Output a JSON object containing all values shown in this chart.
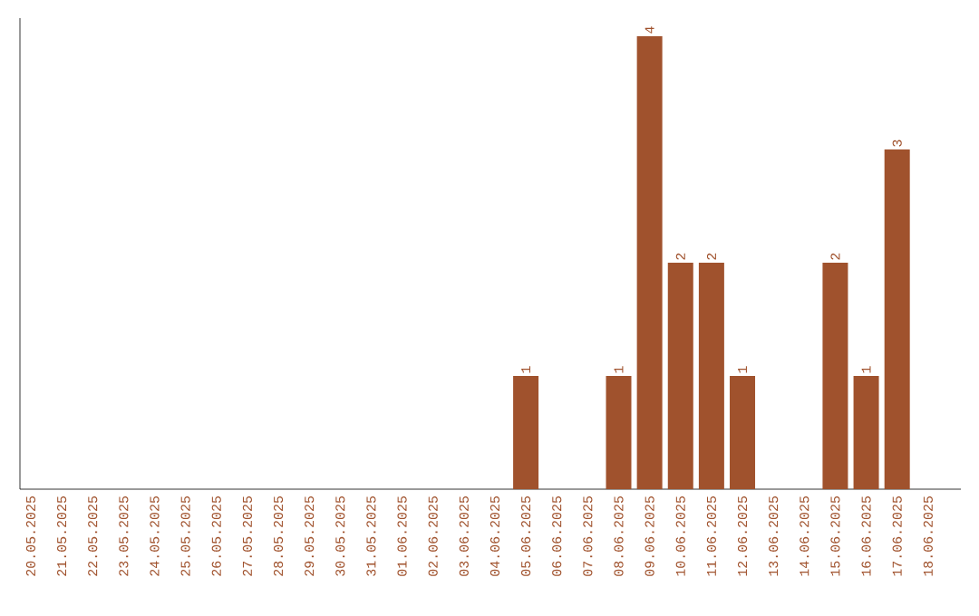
{
  "chart_data": {
    "type": "bar",
    "categories": [
      "20.05.2025",
      "21.05.2025",
      "22.05.2025",
      "23.05.2025",
      "24.05.2025",
      "25.05.2025",
      "26.05.2025",
      "27.05.2025",
      "28.05.2025",
      "29.05.2025",
      "30.05.2025",
      "31.05.2025",
      "01.06.2025",
      "02.06.2025",
      "03.06.2025",
      "04.06.2025",
      "05.06.2025",
      "06.06.2025",
      "07.06.2025",
      "08.06.2025",
      "09.06.2025",
      "10.06.2025",
      "11.06.2025",
      "12.06.2025",
      "13.06.2025",
      "14.06.2025",
      "15.06.2025",
      "16.06.2025",
      "17.06.2025",
      "18.06.2025"
    ],
    "values": [
      null,
      null,
      null,
      null,
      null,
      null,
      null,
      null,
      null,
      null,
      null,
      null,
      null,
      null,
      null,
      null,
      1,
      null,
      null,
      1,
      4,
      2,
      2,
      1,
      null,
      null,
      2,
      1,
      3,
      null
    ],
    "data_labels": true,
    "color": "#a0522d",
    "ylim": [
      0,
      4.16
    ],
    "tick_labels": "x"
  }
}
